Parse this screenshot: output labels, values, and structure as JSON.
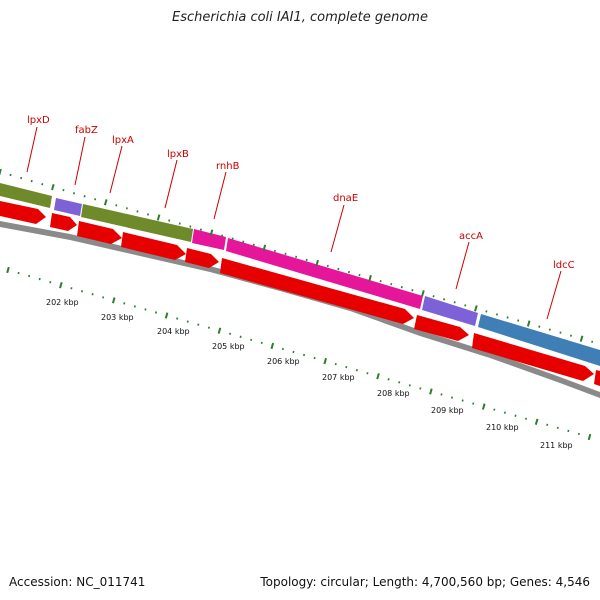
{
  "title": "Escherichia coli IAI1, complete genome",
  "footer": {
    "accession": "Accession: NC_011741",
    "summary": "Topology: circular; Length: 4,700,560 bp; Genes: 4,546"
  },
  "colors": {
    "cds": "#e60000",
    "backbone": "#777777",
    "tick": "#2e7d2e",
    "label": "#cc0000",
    "olive": "#6f8a2a",
    "purple": "#7c62d6",
    "pink": "#e6169a",
    "blue": "#3f7fb5"
  },
  "genes": [
    {
      "name": "lpxD"
    },
    {
      "name": "fabZ"
    },
    {
      "name": "lpxA"
    },
    {
      "name": "lpxB"
    },
    {
      "name": "rnhB"
    },
    {
      "name": "dnaE"
    },
    {
      "name": "accA"
    },
    {
      "name": "ldcC"
    }
  ],
  "kbp_labels": [
    "202 kbp",
    "203 kbp",
    "204 kbp",
    "205 kbp",
    "206 kbp",
    "207 kbp",
    "208 kbp",
    "209 kbp",
    "210 kbp",
    "211 kbp"
  ]
}
